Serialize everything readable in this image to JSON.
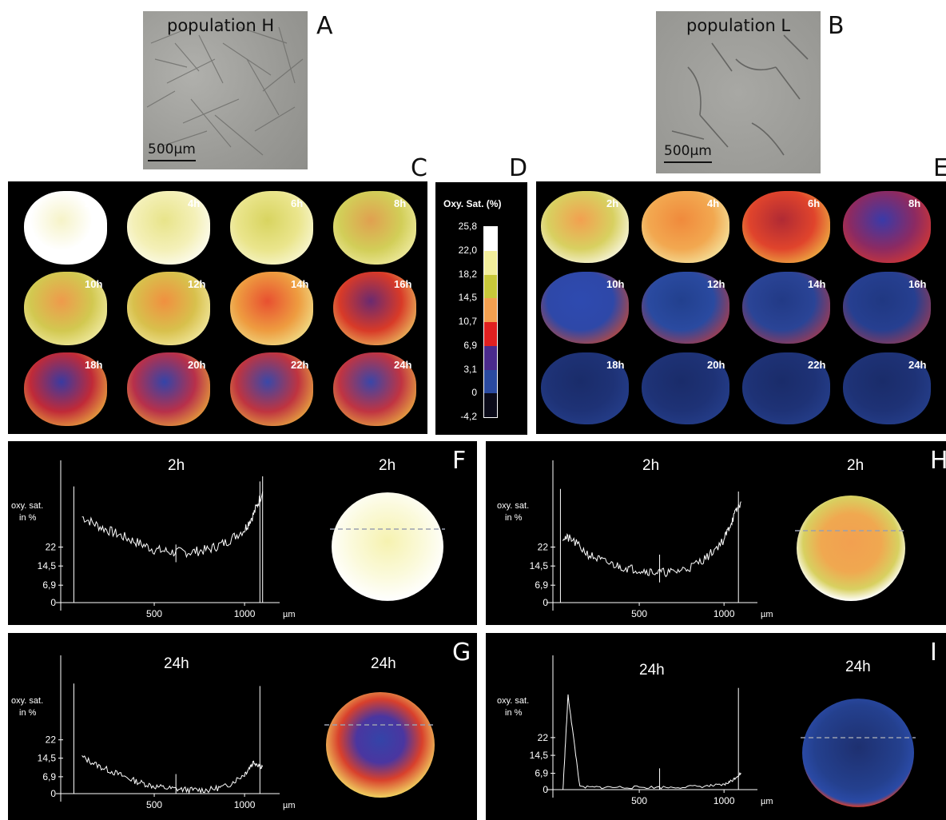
{
  "panels": {
    "A": {
      "letter": "A",
      "label": "population H",
      "scale": "500µm"
    },
    "B": {
      "letter": "B",
      "label": "population L",
      "scale": "500µm"
    },
    "C": {
      "letter": "C",
      "times": [
        "2h",
        "4h",
        "6h",
        "8h",
        "10h",
        "12h",
        "14h",
        "16h",
        "18h",
        "20h",
        "22h",
        "24h"
      ]
    },
    "D": {
      "letter": "D",
      "title": "Oxy. Sat. (%)",
      "ticks": [
        "25,8",
        "22,0",
        "18,2",
        "14,5",
        "10,7",
        "6,9",
        "3,1",
        "0",
        "-4,2"
      ]
    },
    "E": {
      "letter": "E",
      "times": [
        "2h",
        "4h",
        "6h",
        "8h",
        "10h",
        "12h",
        "14h",
        "16h",
        "18h",
        "20h",
        "22h",
        "24h"
      ]
    },
    "F": {
      "letter": "F",
      "title": "2h",
      "image_title": "2h"
    },
    "G": {
      "letter": "G",
      "title": "24h",
      "image_title": "24h"
    },
    "H": {
      "letter": "H",
      "title": "2h",
      "image_title": "2h"
    },
    "I": {
      "letter": "I",
      "title": "24h",
      "image_title": "24h"
    }
  },
  "colorbar": {
    "bands": [
      "#ffffff",
      "#f2ee9c",
      "#c8c83a",
      "#f3a050",
      "#e02020",
      "#4a2a8c",
      "#2a4aa0",
      "#0a0a18"
    ]
  },
  "profile_axes": {
    "ylabel_line1": "oxy. sat.",
    "ylabel_line2": "in %",
    "yticks": [
      "22",
      "14,5",
      "6,9",
      "0"
    ],
    "xticks": [
      "500",
      "1000"
    ],
    "xunit": "µm"
  },
  "chart_data": [
    {
      "type": "line",
      "panel": "F",
      "title": "2h",
      "ylabel": "oxy. sat. in %",
      "xlabel": "µm",
      "x": [
        100,
        200,
        300,
        400,
        500,
        600,
        700,
        800,
        900,
        1000,
        1050,
        1100
      ],
      "y": [
        34,
        30,
        27,
        24,
        21,
        20,
        20,
        21,
        24,
        29,
        35,
        44
      ]
    },
    {
      "type": "line",
      "panel": "G",
      "title": "24h",
      "ylabel": "oxy. sat. in %",
      "xlabel": "µm",
      "x": [
        100,
        200,
        300,
        400,
        500,
        600,
        700,
        800,
        900,
        1000,
        1050,
        1100
      ],
      "y": [
        15,
        11,
        8,
        5,
        3,
        2,
        1.5,
        1.5,
        3,
        8,
        13,
        11
      ]
    },
    {
      "type": "line",
      "panel": "H",
      "title": "2h",
      "ylabel": "oxy. sat. in %",
      "xlabel": "µm",
      "x": [
        50,
        100,
        200,
        300,
        400,
        500,
        600,
        700,
        800,
        900,
        1000,
        1050,
        1100
      ],
      "y": [
        26,
        25,
        19,
        16,
        14,
        13,
        12,
        12,
        14,
        18,
        25,
        33,
        40
      ]
    },
    {
      "type": "line",
      "panel": "I",
      "title": "24h",
      "ylabel": "oxy. sat. in %",
      "xlabel": "µm",
      "x": [
        50,
        80,
        150,
        300,
        500,
        700,
        900,
        1000,
        1050,
        1100
      ],
      "y": [
        0,
        40,
        1,
        1,
        1,
        1,
        1.5,
        2,
        4,
        7
      ]
    }
  ]
}
